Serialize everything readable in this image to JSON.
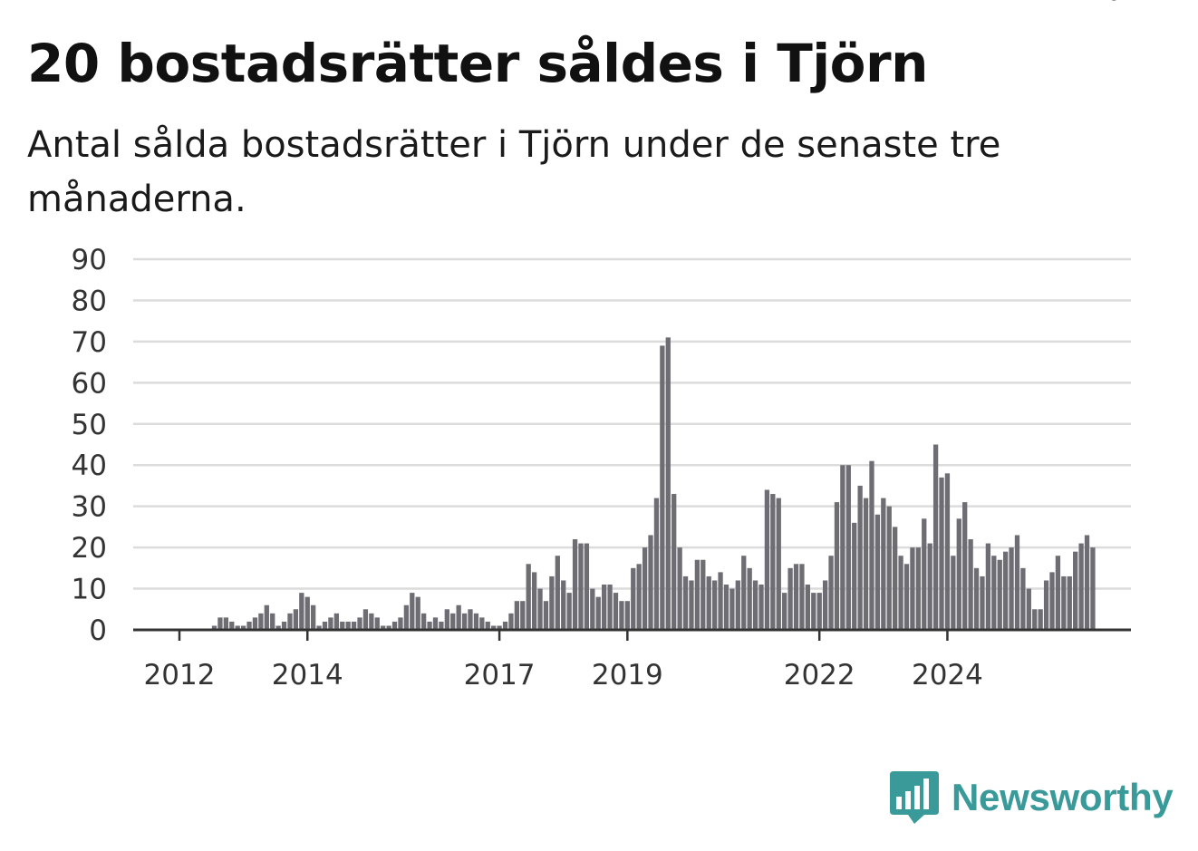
{
  "title": "20 bostadsrätter såldes i Tjörn",
  "subtitle": "Antal sålda bostadsrätter i Tjörn under de senaste tre månaderna.",
  "brand": "Newsworthy",
  "chart_data": {
    "type": "bar",
    "y_ticks": [
      0,
      10,
      20,
      30,
      40,
      50,
      60,
      70,
      80,
      90
    ],
    "ylim": [
      0,
      90
    ],
    "grid": true,
    "x_tick_labels": [
      {
        "label": "2012",
        "index": 4
      },
      {
        "label": "2014",
        "index": 26
      },
      {
        "label": "2017",
        "index": 59
      },
      {
        "label": "2019",
        "index": 81
      },
      {
        "label": "2022",
        "index": 114
      },
      {
        "label": "2024",
        "index": 136
      }
    ],
    "values": [
      0,
      0,
      0,
      0,
      0,
      0,
      0,
      0,
      0,
      0,
      1,
      3,
      3,
      2,
      1,
      1,
      2,
      3,
      4,
      6,
      4,
      1,
      2,
      4,
      5,
      9,
      8,
      6,
      1,
      2,
      3,
      4,
      2,
      2,
      2,
      3,
      5,
      4,
      3,
      1,
      1,
      2,
      3,
      6,
      9,
      8,
      4,
      2,
      3,
      2,
      5,
      4,
      6,
      4,
      5,
      4,
      3,
      2,
      1,
      1,
      2,
      4,
      7,
      7,
      16,
      14,
      10,
      7,
      13,
      18,
      12,
      9,
      22,
      21,
      21,
      10,
      8,
      11,
      11,
      9,
      7,
      7,
      15,
      16,
      20,
      23,
      32,
      69,
      71,
      33,
      20,
      13,
      12,
      17,
      17,
      13,
      12,
      14,
      11,
      10,
      12,
      18,
      15,
      12,
      11,
      34,
      33,
      32,
      9,
      15,
      16,
      16,
      11,
      9,
      9,
      12,
      18,
      31,
      40,
      40,
      26,
      35,
      32,
      41,
      28,
      32,
      30,
      25,
      18,
      16,
      20,
      20,
      27,
      21,
      45,
      37,
      38,
      18,
      27,
      31,
      22,
      15,
      13,
      21,
      18,
      17,
      19,
      20,
      23,
      15,
      10,
      5,
      5,
      12,
      14,
      18,
      13,
      13,
      19,
      21,
      23,
      20
    ],
    "highlight_index": 163,
    "highlight_label": "20",
    "bar_color": "#6e6d73",
    "highlight_color": "#1f9b97"
  }
}
